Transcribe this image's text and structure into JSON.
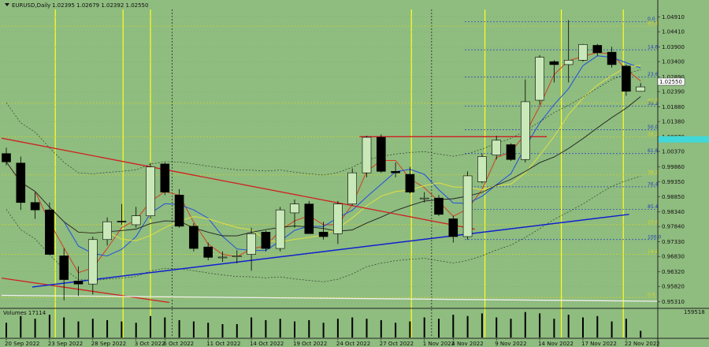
{
  "header": {
    "symbol": "EURUSD,Daily",
    "ohlc": "1.02395 1.02679 1.02392 1.02550"
  },
  "volume_panel": {
    "label": "Volumes 17114",
    "max_label": "159518"
  },
  "colors": {
    "background": "#8fbc7f",
    "bull_candle": "#c8e8b8",
    "bear_candle": "#000000",
    "red_line": "#d02020",
    "blue_line": "#1020d0",
    "white_line": "#f0f0f0",
    "fib_blue": "#2040c0",
    "fib_yellow": "#d8d820",
    "ma_red": "#d04020",
    "ma_blue": "#2050e0",
    "ma_yellow": "#e0e040",
    "ma_black": "#202020",
    "price_tag": "#40d8d8",
    "vline_yellow": "#ffff20"
  },
  "chart_data": {
    "type": "candlestick",
    "ylim": [
      0.9516,
      1.0516
    ],
    "price_ticks": [
      "1.04910",
      "1.04410",
      "1.03900",
      "1.03400",
      "1.02890",
      "1.02390",
      "1.01880",
      "1.01380",
      "1.00870",
      "1.00370",
      "0.99860",
      "0.99350",
      "0.98850",
      "0.98340",
      "0.97840",
      "0.97330",
      "0.96830",
      "0.96320",
      "0.95820",
      "0.95310"
    ],
    "price_tick_values": [
      1.0491,
      1.0441,
      1.039,
      1.034,
      1.0289,
      1.0239,
      1.0188,
      1.0138,
      1.0087,
      1.0037,
      0.9986,
      0.9935,
      0.9885,
      0.9834,
      0.9784,
      0.9733,
      0.9683,
      0.9632,
      0.9582,
      0.9531
    ],
    "current_price": "1.02550",
    "current_price_value": 1.0255,
    "date_labels": [
      "20 Sep 2022",
      "23 Sep 2022",
      "28 Sep 2022",
      "3 Oct 2022",
      "6 Oct 2022",
      "11 Oct 2022",
      "14 Oct 2022",
      "19 Oct 2022",
      "24 Oct 2022",
      "27 Oct 2022",
      "1 Nov 2022",
      "4 Nov 2022",
      "9 Nov 2022",
      "14 Nov 2022",
      "17 Nov 2022",
      "22 Nov 2022"
    ],
    "date_label_index": [
      0,
      3,
      6,
      9,
      11,
      14,
      17,
      20,
      23,
      26,
      29,
      31,
      34,
      37,
      40,
      43
    ],
    "candles": [
      {
        "o": 1.003,
        "h": 1.005,
        "l": 0.999,
        "c": 1.0002
      },
      {
        "o": 0.9998,
        "h": 1.002,
        "l": 0.984,
        "c": 0.9865
      },
      {
        "o": 0.9865,
        "h": 0.99,
        "l": 0.981,
        "c": 0.984
      },
      {
        "o": 0.984,
        "h": 0.9865,
        "l": 0.97,
        "c": 0.969
      },
      {
        "o": 0.9685,
        "h": 0.971,
        "l": 0.9535,
        "c": 0.9605
      },
      {
        "o": 0.96,
        "h": 0.965,
        "l": 0.955,
        "c": 0.959
      },
      {
        "o": 0.959,
        "h": 0.975,
        "l": 0.9555,
        "c": 0.974
      },
      {
        "o": 0.974,
        "h": 0.9815,
        "l": 0.972,
        "c": 0.98
      },
      {
        "o": 0.9802,
        "h": 0.986,
        "l": 0.979,
        "c": 0.98
      },
      {
        "o": 0.979,
        "h": 0.985,
        "l": 0.978,
        "c": 0.982
      },
      {
        "o": 0.982,
        "h": 0.9999,
        "l": 0.981,
        "c": 0.9985
      },
      {
        "o": 0.9995,
        "h": 1.0,
        "l": 0.989,
        "c": 0.99
      },
      {
        "o": 0.989,
        "h": 0.991,
        "l": 0.978,
        "c": 0.9785
      },
      {
        "o": 0.9785,
        "h": 0.9795,
        "l": 0.97,
        "c": 0.971
      },
      {
        "o": 0.9715,
        "h": 0.973,
        "l": 0.967,
        "c": 0.968
      },
      {
        "o": 0.968,
        "h": 0.97,
        "l": 0.9665,
        "c": 0.9681
      },
      {
        "o": 0.9682,
        "h": 0.9704,
        "l": 0.966,
        "c": 0.9685
      },
      {
        "o": 0.969,
        "h": 0.978,
        "l": 0.9635,
        "c": 0.976
      },
      {
        "o": 0.9765,
        "h": 0.977,
        "l": 0.97,
        "c": 0.971
      },
      {
        "o": 0.971,
        "h": 0.985,
        "l": 0.97,
        "c": 0.984
      },
      {
        "o": 0.983,
        "h": 0.9875,
        "l": 0.978,
        "c": 0.986
      },
      {
        "o": 0.986,
        "h": 0.987,
        "l": 0.976,
        "c": 0.976
      },
      {
        "o": 0.9765,
        "h": 0.98,
        "l": 0.974,
        "c": 0.975
      },
      {
        "o": 0.976,
        "h": 0.987,
        "l": 0.9725,
        "c": 0.986
      },
      {
        "o": 0.986,
        "h": 0.998,
        "l": 0.9855,
        "c": 0.9965
      },
      {
        "o": 0.9965,
        "h": 1.009,
        "l": 0.995,
        "c": 1.0085
      },
      {
        "o": 1.0085,
        "h": 1.0095,
        "l": 0.9965,
        "c": 0.997
      },
      {
        "o": 0.997,
        "h": 1.0,
        "l": 0.995,
        "c": 0.9965
      },
      {
        "o": 0.996,
        "h": 0.9985,
        "l": 0.9895,
        "c": 0.99
      },
      {
        "o": 0.988,
        "h": 0.99,
        "l": 0.9865,
        "c": 0.988
      },
      {
        "o": 0.988,
        "h": 0.989,
        "l": 0.982,
        "c": 0.9825
      },
      {
        "o": 0.981,
        "h": 0.982,
        "l": 0.973,
        "c": 0.975
      },
      {
        "o": 0.975,
        "h": 0.997,
        "l": 0.974,
        "c": 0.9955
      },
      {
        "o": 0.9935,
        "h": 1.003,
        "l": 0.993,
        "c": 1.002
      },
      {
        "o": 1.0025,
        "h": 1.009,
        "l": 1.001,
        "c": 1.0075
      },
      {
        "o": 1.006,
        "h": 1.0065,
        "l": 1.0005,
        "c": 1.001
      },
      {
        "o": 1.001,
        "h": 1.028,
        "l": 1.0,
        "c": 1.0205
      },
      {
        "o": 1.021,
        "h": 1.0362,
        "l": 1.0195,
        "c": 1.0355
      },
      {
        "o": 1.034,
        "h": 1.0345,
        "l": 1.027,
        "c": 1.033
      },
      {
        "o": 1.033,
        "h": 1.048,
        "l": 1.027,
        "c": 1.0345
      },
      {
        "o": 1.0345,
        "h": 1.04,
        "l": 1.034,
        "c": 1.0398
      },
      {
        "o": 1.0395,
        "h": 1.04,
        "l": 1.036,
        "c": 1.037
      },
      {
        "o": 1.0372,
        "h": 1.039,
        "l": 1.032,
        "c": 1.033
      },
      {
        "o": 1.0325,
        "h": 1.033,
        "l": 1.0225,
        "c": 1.024
      },
      {
        "o": 1.024,
        "h": 1.0268,
        "l": 1.0239,
        "c": 1.0255
      }
    ],
    "volumes": [
      0.55,
      0.8,
      0.7,
      0.85,
      0.75,
      0.6,
      0.7,
      0.65,
      0.6,
      0.55,
      0.8,
      0.75,
      0.65,
      0.6,
      0.55,
      0.5,
      0.5,
      0.75,
      0.65,
      0.7,
      0.6,
      0.65,
      0.55,
      0.7,
      0.75,
      0.7,
      0.65,
      0.55,
      0.6,
      0.75,
      0.7,
      0.85,
      0.8,
      0.9,
      0.75,
      0.7,
      0.95,
      0.9,
      0.7,
      0.85,
      0.75,
      0.8,
      0.6,
      0.7,
      0.25
    ],
    "fib_levels": [
      {
        "label": "0.0",
        "value": 1.0475,
        "color": "blue"
      },
      {
        "label": "23.6",
        "value": 1.0288,
        "color": "blue"
      },
      {
        "label": "38.2",
        "value": 1.019,
        "color": "blue"
      },
      {
        "label": "50.0",
        "value": 1.011,
        "color": "blue"
      },
      {
        "label": "61.8",
        "value": 1.003,
        "color": "blue"
      },
      {
        "label": "76.4",
        "value": 0.9918,
        "color": "blue"
      },
      {
        "label": "85.4",
        "value": 0.9842,
        "color": "blue"
      },
      {
        "label": "100.0",
        "value": 0.974,
        "color": "blue"
      },
      {
        "label": "85.4",
        "value": 1.046,
        "color": "yellow"
      },
      {
        "label": "14.6",
        "value": 1.038,
        "color": "blue"
      },
      {
        "label": "61.8",
        "value": 1.02,
        "color": "yellow"
      },
      {
        "label": "38.2",
        "value": 1.0087,
        "color": "yellow"
      },
      {
        "label": "38.2",
        "value": 0.9958,
        "color": "yellow"
      },
      {
        "label": "23.6",
        "value": 0.979,
        "color": "yellow"
      },
      {
        "label": "14.6",
        "value": 0.969,
        "color": "yellow"
      },
      {
        "label": "0.0",
        "value": 0.9545,
        "color": "yellow"
      }
    ]
  }
}
